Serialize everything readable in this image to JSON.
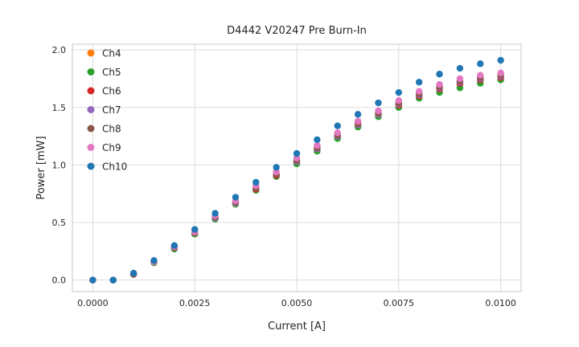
{
  "chart_data": {
    "type": "scatter",
    "title": "D4442 V20247 Pre Burn-In",
    "xlabel": "Current [A]",
    "ylabel": "Power [mW]",
    "xlim": [
      -0.0005,
      0.0105
    ],
    "ylim": [
      -0.1,
      2.05
    ],
    "grid": true,
    "legend_position": "upper-left",
    "grid_color": "#dcdcdc",
    "border_color": "#d0d0d0",
    "xticks": [
      {
        "value": 0.0,
        "label": "0.0000"
      },
      {
        "value": 0.0025,
        "label": "0.0025"
      },
      {
        "value": 0.005,
        "label": "0.0050"
      },
      {
        "value": 0.0075,
        "label": "0.0075"
      },
      {
        "value": 0.01,
        "label": "0.0100"
      }
    ],
    "yticks": [
      {
        "value": 0.0,
        "label": "0.0"
      },
      {
        "value": 0.5,
        "label": "0.5"
      },
      {
        "value": 1.0,
        "label": "1.0"
      },
      {
        "value": 1.5,
        "label": "1.5"
      },
      {
        "value": 2.0,
        "label": "2.0"
      }
    ],
    "x": [
      0.0,
      0.0005,
      0.001,
      0.0015,
      0.002,
      0.0025,
      0.003,
      0.0035,
      0.004,
      0.0045,
      0.005,
      0.0055,
      0.006,
      0.0065,
      0.007,
      0.0075,
      0.008,
      0.0085,
      0.009,
      0.0095,
      0.01
    ],
    "series": [
      {
        "name": "Ch4",
        "color": "#ff7f0e",
        "values": [
          0.0,
          0.0,
          0.05,
          0.16,
          0.28,
          0.4,
          0.54,
          0.66,
          0.79,
          0.91,
          1.02,
          1.13,
          1.24,
          1.34,
          1.43,
          1.52,
          1.6,
          1.66,
          1.7,
          1.73,
          1.75
        ]
      },
      {
        "name": "Ch5",
        "color": "#2ca02c",
        "values": [
          0.0,
          0.0,
          0.05,
          0.15,
          0.27,
          0.4,
          0.53,
          0.66,
          0.78,
          0.9,
          1.01,
          1.12,
          1.23,
          1.33,
          1.42,
          1.5,
          1.58,
          1.63,
          1.67,
          1.71,
          1.74
        ]
      },
      {
        "name": "Ch6",
        "color": "#d62728",
        "values": [
          0.0,
          0.0,
          0.05,
          0.16,
          0.28,
          0.41,
          0.54,
          0.67,
          0.79,
          0.91,
          1.03,
          1.14,
          1.25,
          1.35,
          1.44,
          1.52,
          1.6,
          1.66,
          1.71,
          1.74,
          1.76
        ]
      },
      {
        "name": "Ch7",
        "color": "#9467bd",
        "values": [
          0.0,
          0.0,
          0.05,
          0.16,
          0.28,
          0.41,
          0.54,
          0.67,
          0.8,
          0.92,
          1.03,
          1.14,
          1.25,
          1.35,
          1.44,
          1.53,
          1.61,
          1.67,
          1.72,
          1.75,
          1.77
        ]
      },
      {
        "name": "Ch8",
        "color": "#8c564b",
        "values": [
          0.0,
          0.0,
          0.05,
          0.16,
          0.28,
          0.41,
          0.55,
          0.68,
          0.8,
          0.92,
          1.04,
          1.15,
          1.26,
          1.36,
          1.45,
          1.54,
          1.62,
          1.68,
          1.73,
          1.76,
          1.78
        ]
      },
      {
        "name": "Ch9",
        "color": "#e377c2",
        "values": [
          0.0,
          0.0,
          0.06,
          0.16,
          0.29,
          0.42,
          0.56,
          0.69,
          0.82,
          0.94,
          1.06,
          1.17,
          1.28,
          1.38,
          1.47,
          1.56,
          1.64,
          1.7,
          1.75,
          1.78,
          1.8
        ]
      },
      {
        "name": "Ch10",
        "color": "#1f77b4",
        "values": [
          0.0,
          0.0,
          0.06,
          0.17,
          0.3,
          0.44,
          0.58,
          0.72,
          0.85,
          0.98,
          1.1,
          1.22,
          1.34,
          1.44,
          1.54,
          1.63,
          1.72,
          1.79,
          1.84,
          1.88,
          1.91
        ]
      }
    ]
  }
}
